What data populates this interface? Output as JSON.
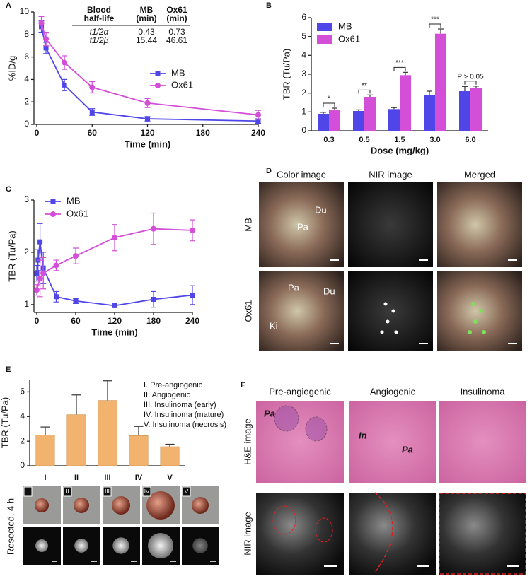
{
  "panel_labels": [
    "A",
    "B",
    "C",
    "D",
    "E",
    "F"
  ],
  "chart_data": [
    {
      "type": "line",
      "xlabel": "Time (min)",
      "ylabel": "%ID/g",
      "xlim": [
        0,
        240
      ],
      "xticks": [
        0,
        60,
        120,
        180,
        240
      ],
      "ylim": [
        0,
        10
      ],
      "yticks": [
        0,
        2,
        4,
        6,
        8,
        10
      ],
      "legend": "right",
      "series": [
        {
          "name": "MB",
          "color": "#5046e8",
          "marker": "square",
          "x": [
            5,
            10,
            30,
            60,
            120,
            240
          ],
          "values": [
            8.7,
            6.8,
            3.5,
            1.1,
            0.5,
            0.3
          ],
          "errors": [
            0.5,
            0.5,
            0.5,
            0.3,
            0.2,
            0.2
          ]
        },
        {
          "name": "Ox61",
          "color": "#d44fd8",
          "marker": "circle",
          "x": [
            5,
            10,
            30,
            60,
            120,
            240
          ],
          "values": [
            9.0,
            7.6,
            5.5,
            3.3,
            1.9,
            0.85
          ],
          "errors": [
            0.6,
            0.6,
            0.6,
            0.5,
            0.4,
            0.4
          ]
        }
      ],
      "table": {
        "header": [
          [
            "Blood",
            "half-life"
          ],
          [
            "MB",
            "(min)"
          ],
          [
            "Ox61",
            "(min)"
          ]
        ],
        "rows": [
          [
            "t1/2α",
            0.43,
            0.73
          ],
          [
            "t1/2β",
            15.44,
            46.61
          ]
        ]
      }
    },
    {
      "type": "bar",
      "xlabel": "Dose (mg/kg)",
      "ylabel": "TBR (Tu/Pa)",
      "categories": [
        "0.3",
        "0.5",
        "1.5",
        "3.0",
        "6.0"
      ],
      "ylim": [
        0,
        6
      ],
      "yticks": [
        0,
        1,
        2,
        3,
        4,
        5,
        6
      ],
      "legend": "upper left",
      "series": [
        {
          "name": "MB",
          "color": "#5046e8",
          "values": [
            0.9,
            1.05,
            1.15,
            1.9,
            2.1
          ],
          "errors": [
            0.08,
            0.06,
            0.08,
            0.2,
            0.25
          ]
        },
        {
          "name": "Ox61",
          "color": "#d44fd8",
          "values": [
            1.1,
            1.8,
            2.95,
            5.15,
            2.25
          ],
          "errors": [
            0.1,
            0.1,
            0.15,
            0.25,
            0.12
          ]
        }
      ],
      "significance": [
        "*",
        "**",
        "***",
        "***",
        "P > 0.05"
      ]
    },
    {
      "type": "line",
      "xlabel": "Time (min)",
      "ylabel": "TBR (Tu/Pa)",
      "xlim": [
        0,
        240
      ],
      "xticks": [
        0,
        60,
        120,
        180,
        240
      ],
      "ylim": [
        0.85,
        3
      ],
      "yticks": [
        1,
        2,
        3
      ],
      "legend": "upper left",
      "series": [
        {
          "name": "MB",
          "color": "#5046e8",
          "marker": "square",
          "x": [
            0,
            2,
            5,
            10,
            30,
            60,
            120,
            180,
            240
          ],
          "values": [
            1.6,
            1.85,
            2.2,
            1.7,
            1.15,
            1.07,
            0.98,
            1.1,
            1.18
          ],
          "errors": [
            0.15,
            0.2,
            0.35,
            0.3,
            0.1,
            0.05,
            0.03,
            0.15,
            0.18
          ]
        },
        {
          "name": "Ox61",
          "color": "#d44fd8",
          "marker": "circle",
          "x": [
            0,
            5,
            10,
            30,
            60,
            120,
            180,
            240
          ],
          "values": [
            1.28,
            1.5,
            1.6,
            1.75,
            1.93,
            2.28,
            2.45,
            2.42
          ],
          "errors": [
            0.1,
            0.35,
            0.3,
            0.1,
            0.15,
            0.25,
            0.3,
            0.2
          ]
        }
      ]
    },
    {
      "type": "bar",
      "ylabel": "TBR (Tu/Pa)",
      "categories": [
        "I",
        "II",
        "III",
        "IV",
        "V"
      ],
      "ylim": [
        0,
        7
      ],
      "yticks": [
        0,
        2,
        4,
        6
      ],
      "series": [
        {
          "color": "#f2b36f",
          "values": [
            2.5,
            4.15,
            5.3,
            2.45,
            1.55
          ],
          "errors": [
            0.65,
            1.6,
            1.6,
            0.75,
            0.2
          ]
        }
      ],
      "notes": [
        "I.   Pre-angiogenic",
        "II.  Angiogenic",
        "III. Insulinoma (early)",
        "IV. Insulinoma (mature)",
        "V.  Insulinoma (necrosis)"
      ],
      "image_label": "Resected, 4 h"
    }
  ],
  "panel_D": {
    "columns": [
      "Color image",
      "NIR image",
      "Merged"
    ],
    "rows": [
      "MB",
      "Ox61"
    ],
    "labels": [
      [
        "Du",
        "Pa"
      ],
      [
        "Pa",
        "Du",
        "Ki"
      ]
    ]
  },
  "panel_F": {
    "columns": [
      "Pre-angiogenic",
      "Angiogenic",
      "Insulinoma"
    ],
    "rows": [
      "H&E image",
      "NIR image"
    ],
    "labels": [
      "Pa",
      "In",
      "Pa"
    ]
  }
}
